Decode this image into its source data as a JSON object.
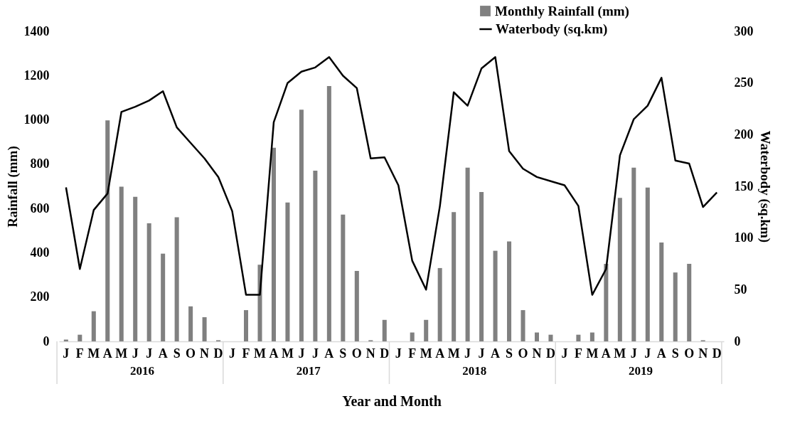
{
  "chart_data": {
    "type": "bar",
    "xlabel": "Year and Month",
    "ylabel": "Rainfall (mm)",
    "y2label": "Waterbody (sq.km)",
    "categories": [
      "J",
      "F",
      "M",
      "A",
      "M",
      "J",
      "J",
      "A",
      "S",
      "O",
      "N",
      "D",
      "J",
      "F",
      "M",
      "A",
      "M",
      "J",
      "J",
      "A",
      "S",
      "O",
      "N",
      "D",
      "J",
      "F",
      "M",
      "A",
      "M",
      "J",
      "J",
      "A",
      "S",
      "O",
      "N",
      "D",
      "J",
      "F",
      "M",
      "A",
      "M",
      "J",
      "J",
      "A",
      "S",
      "O",
      "N",
      "D"
    ],
    "annotations": [
      "2016",
      "2017",
      "2018",
      "2019"
    ],
    "series": [
      {
        "name": "Monthly Rainfall (mm)",
        "color": "#808080",
        "values": [
          8,
          30,
          136,
          998,
          698,
          653,
          533,
          396,
          560,
          158,
          109,
          5,
          0,
          141,
          346,
          874,
          627,
          1046,
          771,
          1153,
          572,
          318,
          5,
          97,
          0,
          40,
          97,
          331,
          584,
          784,
          674,
          409,
          451,
          141,
          40,
          30,
          0,
          30,
          40,
          350,
          648,
          784,
          694,
          446,
          311,
          350,
          5,
          0
        ]
      },
      {
        "name": "Waterbody (sq.km)",
        "type": "line",
        "axis": "y2",
        "color": "#000000",
        "values": [
          149,
          70,
          127,
          143,
          222,
          227,
          233,
          242,
          207,
          192,
          177,
          159,
          126,
          45,
          45,
          212,
          250,
          261,
          265,
          275,
          257,
          245,
          177,
          178,
          151,
          78,
          50,
          131,
          241,
          228,
          264,
          275,
          184,
          167,
          159,
          155,
          151,
          131,
          45,
          70,
          180,
          215,
          228,
          255,
          175,
          172,
          130,
          144
        ]
      }
    ],
    "ylim": [
      0,
      1400
    ],
    "yticks": [
      0,
      200,
      400,
      600,
      800,
      1000,
      1200,
      1400
    ],
    "y2lim": [
      0,
      300
    ],
    "y2ticks": [
      0,
      50,
      100,
      150,
      200,
      250,
      300
    ],
    "legend": "top right",
    "grid": false
  }
}
